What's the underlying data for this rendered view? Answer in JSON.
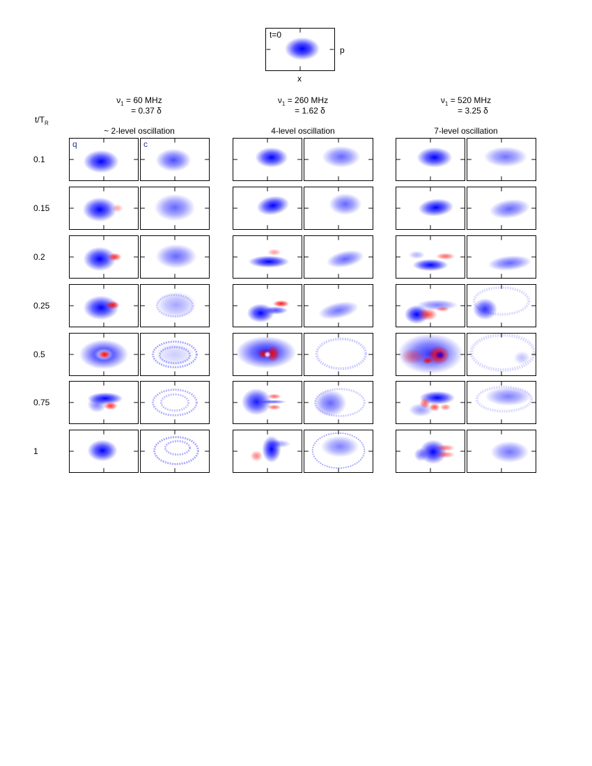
{
  "top_panel": {
    "time_label": "t=0",
    "x_label": "x",
    "p_label": "p"
  },
  "row_axis_label": {
    "main": "t/T",
    "sub": "R"
  },
  "columns": [
    {
      "freq": "ν",
      "freq_sub": "1",
      "freq_val": " = 60 MHz",
      "ratio": "= 0.37 δ",
      "title": "~ 2-level oscillation"
    },
    {
      "freq": "ν",
      "freq_sub": "1",
      "freq_val": " = 260 MHz",
      "ratio": "= 1.62 δ",
      "title": "4-level oscillation"
    },
    {
      "freq": "ν",
      "freq_sub": "1",
      "freq_val": " = 520 MHz",
      "ratio": "= 3.25 δ",
      "title": "7-level oscillation"
    }
  ],
  "panel_tags": {
    "quantum": "q",
    "classical": "c"
  },
  "rows": [
    "0.1",
    "0.15",
    "0.2",
    "0.25",
    "0.5",
    "0.75",
    "1"
  ],
  "colors": {
    "positive": "#0000ff",
    "negative": "#ff0000",
    "frame": "#000000"
  }
}
